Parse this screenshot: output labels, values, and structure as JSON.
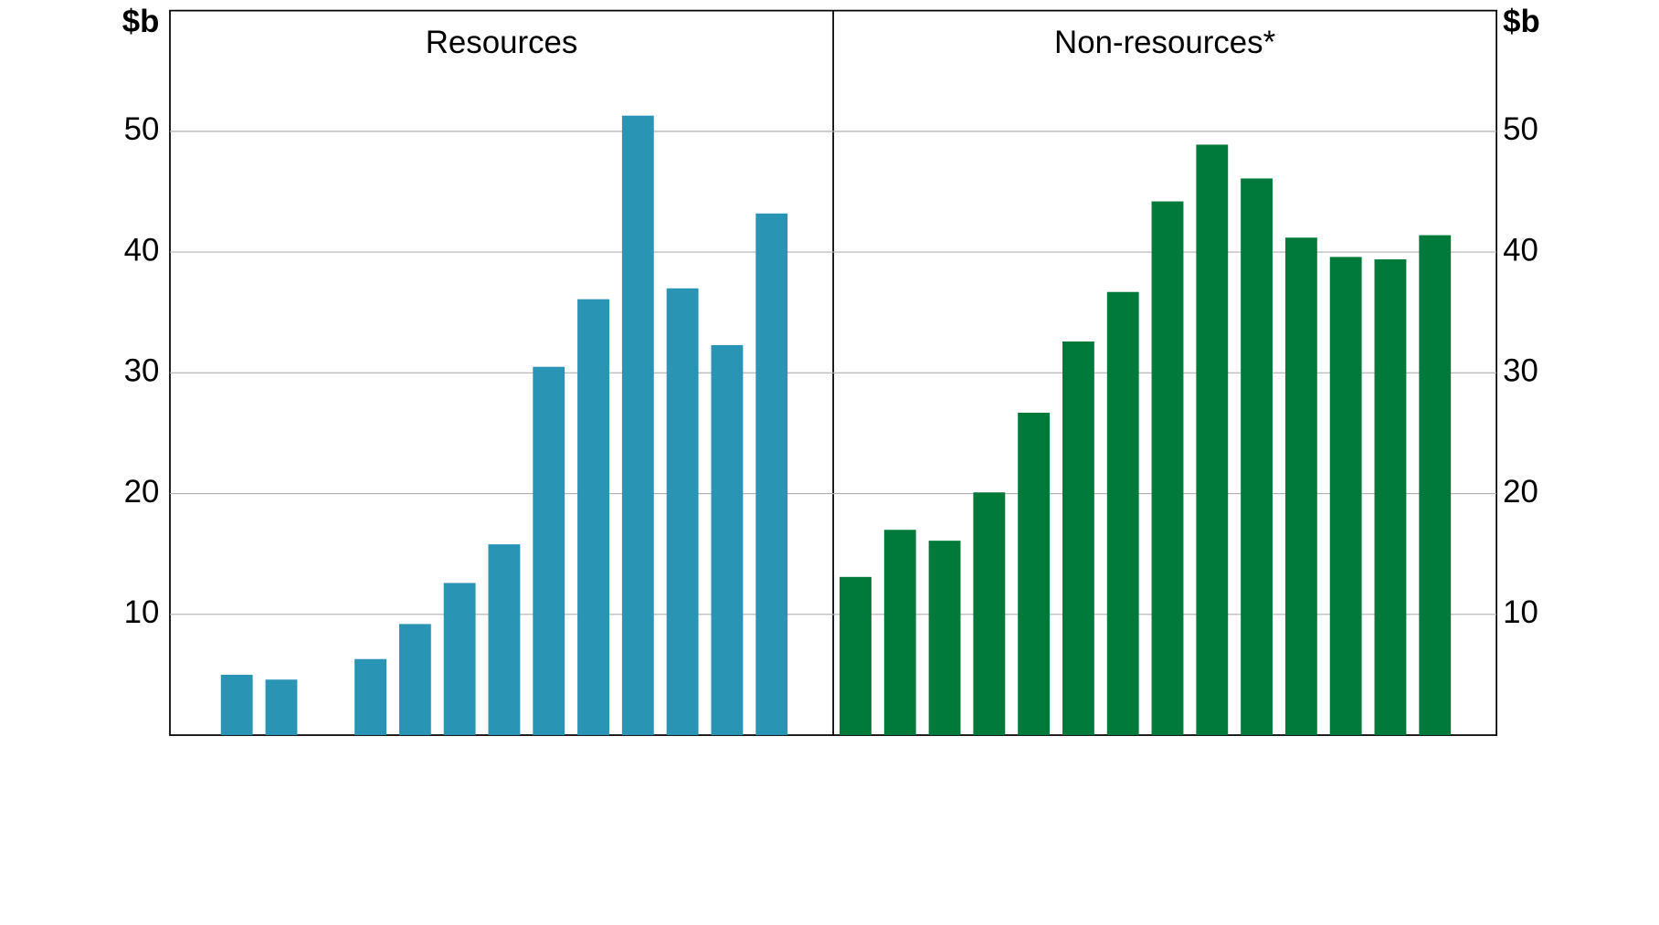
{
  "chart_data": [
    {
      "type": "bar",
      "title": "Resources",
      "y_label": "$b",
      "color": "#2a94b5",
      "categories": [
        null,
        null,
        null,
        null,
        null,
        null,
        null,
        null,
        null,
        null,
        null,
        null,
        null,
        null
      ],
      "values": [
        0,
        5.0,
        4.6,
        0,
        6.3,
        9.2,
        12.6,
        15.8,
        30.5,
        36.1,
        51.3,
        37.0,
        32.3,
        43.2
      ],
      "ylim": [
        0,
        60
      ],
      "yticks": [
        10,
        20,
        30,
        40,
        50
      ],
      "grid": true
    },
    {
      "type": "bar",
      "title": "Non-resources*",
      "y_label": "$b",
      "color": "#007a3a",
      "categories": [
        null,
        null,
        null,
        null,
        null,
        null,
        null,
        null,
        null,
        null,
        null,
        null,
        null,
        null
      ],
      "values": [
        13.1,
        17.0,
        16.1,
        20.1,
        26.7,
        32.6,
        36.7,
        44.2,
        48.9,
        46.1,
        41.2,
        39.6,
        39.4,
        41.4
      ],
      "ylim": [
        0,
        60
      ],
      "yticks": [
        10,
        20,
        30,
        40,
        50
      ],
      "grid": true
    }
  ]
}
